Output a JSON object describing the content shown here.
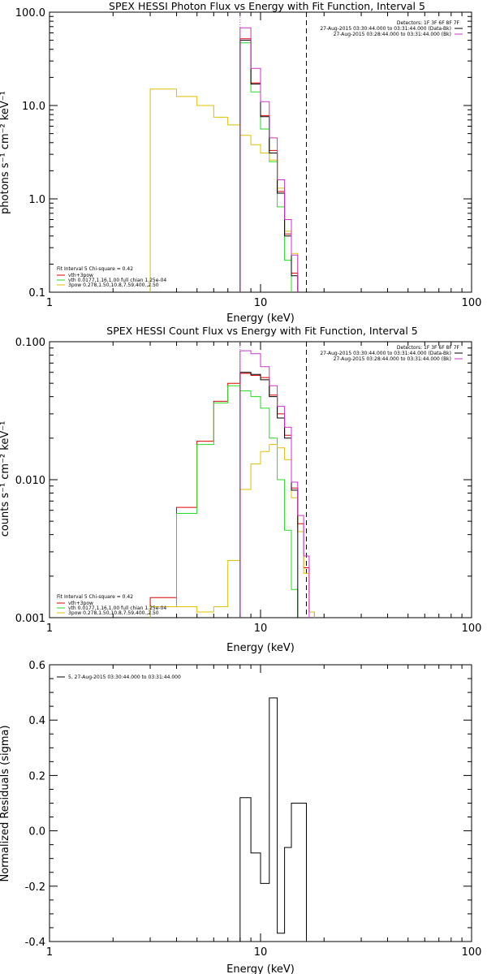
{
  "chart_data": [
    {
      "type": "line",
      "title": "SPEX HESSI Photon Flux vs Energy with Fit Function, Interval 5",
      "xlabel": "Energy (keV)",
      "ylabel": "photons s⁻¹ cm⁻² keV⁻¹",
      "xscale": "log",
      "yscale": "log",
      "xlim": [
        1,
        100
      ],
      "ylim": [
        0.1,
        100
      ],
      "xticks": [
        "1",
        "10",
        "100"
      ],
      "yticks": [
        "0.1",
        "1.0",
        "10.0",
        "100.0"
      ],
      "energy_edges": [
        3,
        4,
        5,
        6,
        7,
        8,
        9,
        10,
        11,
        12,
        13,
        14,
        15,
        16,
        18
      ],
      "vlines": [
        {
          "x": 8.0,
          "style": "dotted",
          "color": "#cc33cc"
        },
        {
          "x": 16.5,
          "style": "dashed",
          "color": "#000000"
        }
      ],
      "series": [
        {
          "name": "vth+3pow",
          "color": "#e00000",
          "values": [
            null,
            null,
            null,
            null,
            null,
            52,
            17.5,
            7.8,
            3.3,
            1.2,
            0.42,
            0.16,
            null,
            null
          ]
        },
        {
          "name": "vth 0.0177,1.16,1.00 full chian 1.25e-04",
          "color": "#22dd22",
          "values": [
            null,
            null,
            null,
            null,
            null,
            47,
            14,
            5.6,
            2.5,
            0.82,
            0.22,
            null,
            null,
            null
          ]
        },
        {
          "name": "3pow 0.278,1.50,10.8,7.59,400.,2.50",
          "color": "#e0c000",
          "values": [
            15,
            12.5,
            10,
            7.5,
            6.2,
            4.8,
            3.8,
            3.1,
            2.6,
            1.3,
            0.45,
            0.26,
            null,
            null
          ]
        },
        {
          "name": "data",
          "color": "#000000",
          "values": [
            null,
            null,
            null,
            null,
            null,
            50,
            17,
            7.6,
            3.1,
            1.15,
            0.4,
            0.15,
            null,
            null
          ]
        },
        {
          "name": "data-bk",
          "color": "#cc33cc",
          "values": [
            null,
            null,
            null,
            null,
            null,
            68,
            25,
            11,
            4.5,
            1.6,
            0.6,
            0.25,
            null,
            null
          ]
        }
      ],
      "legend": {
        "header": [
          "Detectors: 1F 3F 6F 8F 7F",
          "27-Aug-2015 03:30:44.000 to 03:31:44.000 (Data-Bk)",
          "27-Aug-2015 03:28:44.000 to 03:31:44.000 (Bk)"
        ],
        "fit_header": "Fit Interval 5    Chi-square = 0.42",
        "position": "top-right, bottom-left"
      }
    },
    {
      "type": "line",
      "title": "SPEX HESSI Count Flux vs Energy with Fit Function, Interval 5",
      "xlabel": "Energy (keV)",
      "ylabel": "counts s⁻¹ cm⁻² keV⁻¹",
      "xscale": "log",
      "yscale": "log",
      "xlim": [
        1,
        100
      ],
      "ylim": [
        0.001,
        0.1
      ],
      "xticks": [
        "1",
        "10",
        "100"
      ],
      "yticks": [
        "0.001",
        "0.010",
        "0.100"
      ],
      "energy_edges": [
        3,
        4,
        5,
        6,
        7,
        8,
        9,
        10,
        11,
        12,
        13,
        14,
        15,
        16,
        17,
        18,
        20,
        22
      ],
      "vlines": [
        {
          "x": 8.0,
          "style": "dotted",
          "color": "#cc33cc"
        },
        {
          "x": 16.5,
          "style": "dashed",
          "color": "#000000"
        }
      ],
      "series": [
        {
          "name": "vth+3pow",
          "color": "#e00000",
          "values": [
            0.0014,
            0.0063,
            0.019,
            0.037,
            0.05,
            0.059,
            0.057,
            0.055,
            0.041,
            0.03,
            0.021,
            0.0087,
            0.0048,
            0.0023,
            0.0011,
            null,
            null
          ]
        },
        {
          "name": "vth 0.0177,1.16,1.00 full chian 1.25e-04",
          "color": "#22dd22",
          "values": [
            0.0012,
            0.0057,
            0.018,
            0.036,
            0.048,
            0.044,
            0.04,
            0.033,
            0.02,
            0.01,
            0.0043,
            0.0016,
            null,
            null,
            null,
            null,
            null
          ]
        },
        {
          "name": "3pow 0.278,1.50,10.8,7.59,400.,2.50",
          "color": "#e0c000",
          "values": [
            0.0012,
            0.0012,
            0.0011,
            0.0012,
            0.0026,
            0.0085,
            0.013,
            0.016,
            0.018,
            0.017,
            0.014,
            0.0074,
            0.0042,
            0.0021,
            0.0011,
            null,
            null
          ]
        },
        {
          "name": "data",
          "color": "#000000",
          "values": [
            null,
            null,
            null,
            null,
            null,
            0.06,
            0.058,
            0.053,
            0.04,
            0.028,
            0.02,
            0.0084,
            null,
            null,
            null,
            null,
            null
          ]
        },
        {
          "name": "data-bk",
          "color": "#cc33cc",
          "values": [
            null,
            null,
            null,
            null,
            null,
            0.086,
            0.082,
            0.066,
            0.048,
            0.034,
            0.024,
            0.0096,
            0.0055,
            0.0028,
            null,
            null,
            null
          ]
        }
      ],
      "legend": {
        "header": [
          "Detectors: 1F 3F 6F 8F 7F",
          "27-Aug-2015 03:30:44.000 to 03:31:44.000 (Data-Bk)",
          "27-Aug-2015 03:28:44.000 to 03:31:44.000 (Bk)"
        ],
        "fit_header": "Fit Interval 5    Chi-square = 0.42",
        "position": "top-right, bottom-left"
      }
    },
    {
      "type": "line",
      "title": "",
      "xlabel": "Energy (keV)",
      "ylabel": "Normalized Residuals (sigma)",
      "xscale": "log",
      "yscale": "linear",
      "xlim": [
        1,
        100
      ],
      "ylim": [
        -0.4,
        0.6
      ],
      "xticks": [
        "1",
        "10",
        "100"
      ],
      "yticks": [
        "-0.4",
        "-0.2",
        "0.0",
        "0.2",
        "0.4",
        "0.6"
      ],
      "energy_edges": [
        8,
        9,
        10,
        11,
        12,
        13,
        14,
        15,
        16.5
      ],
      "series": [
        {
          "name": "5, 27-Aug-2015 03:30:44.000 to 03:31:44.000",
          "color": "#000000",
          "values": [
            0.12,
            -0.08,
            -0.19,
            0.48,
            -0.37,
            -0.06,
            0.1,
            0.1
          ]
        }
      ],
      "legend": {
        "position": "top-left"
      }
    }
  ]
}
